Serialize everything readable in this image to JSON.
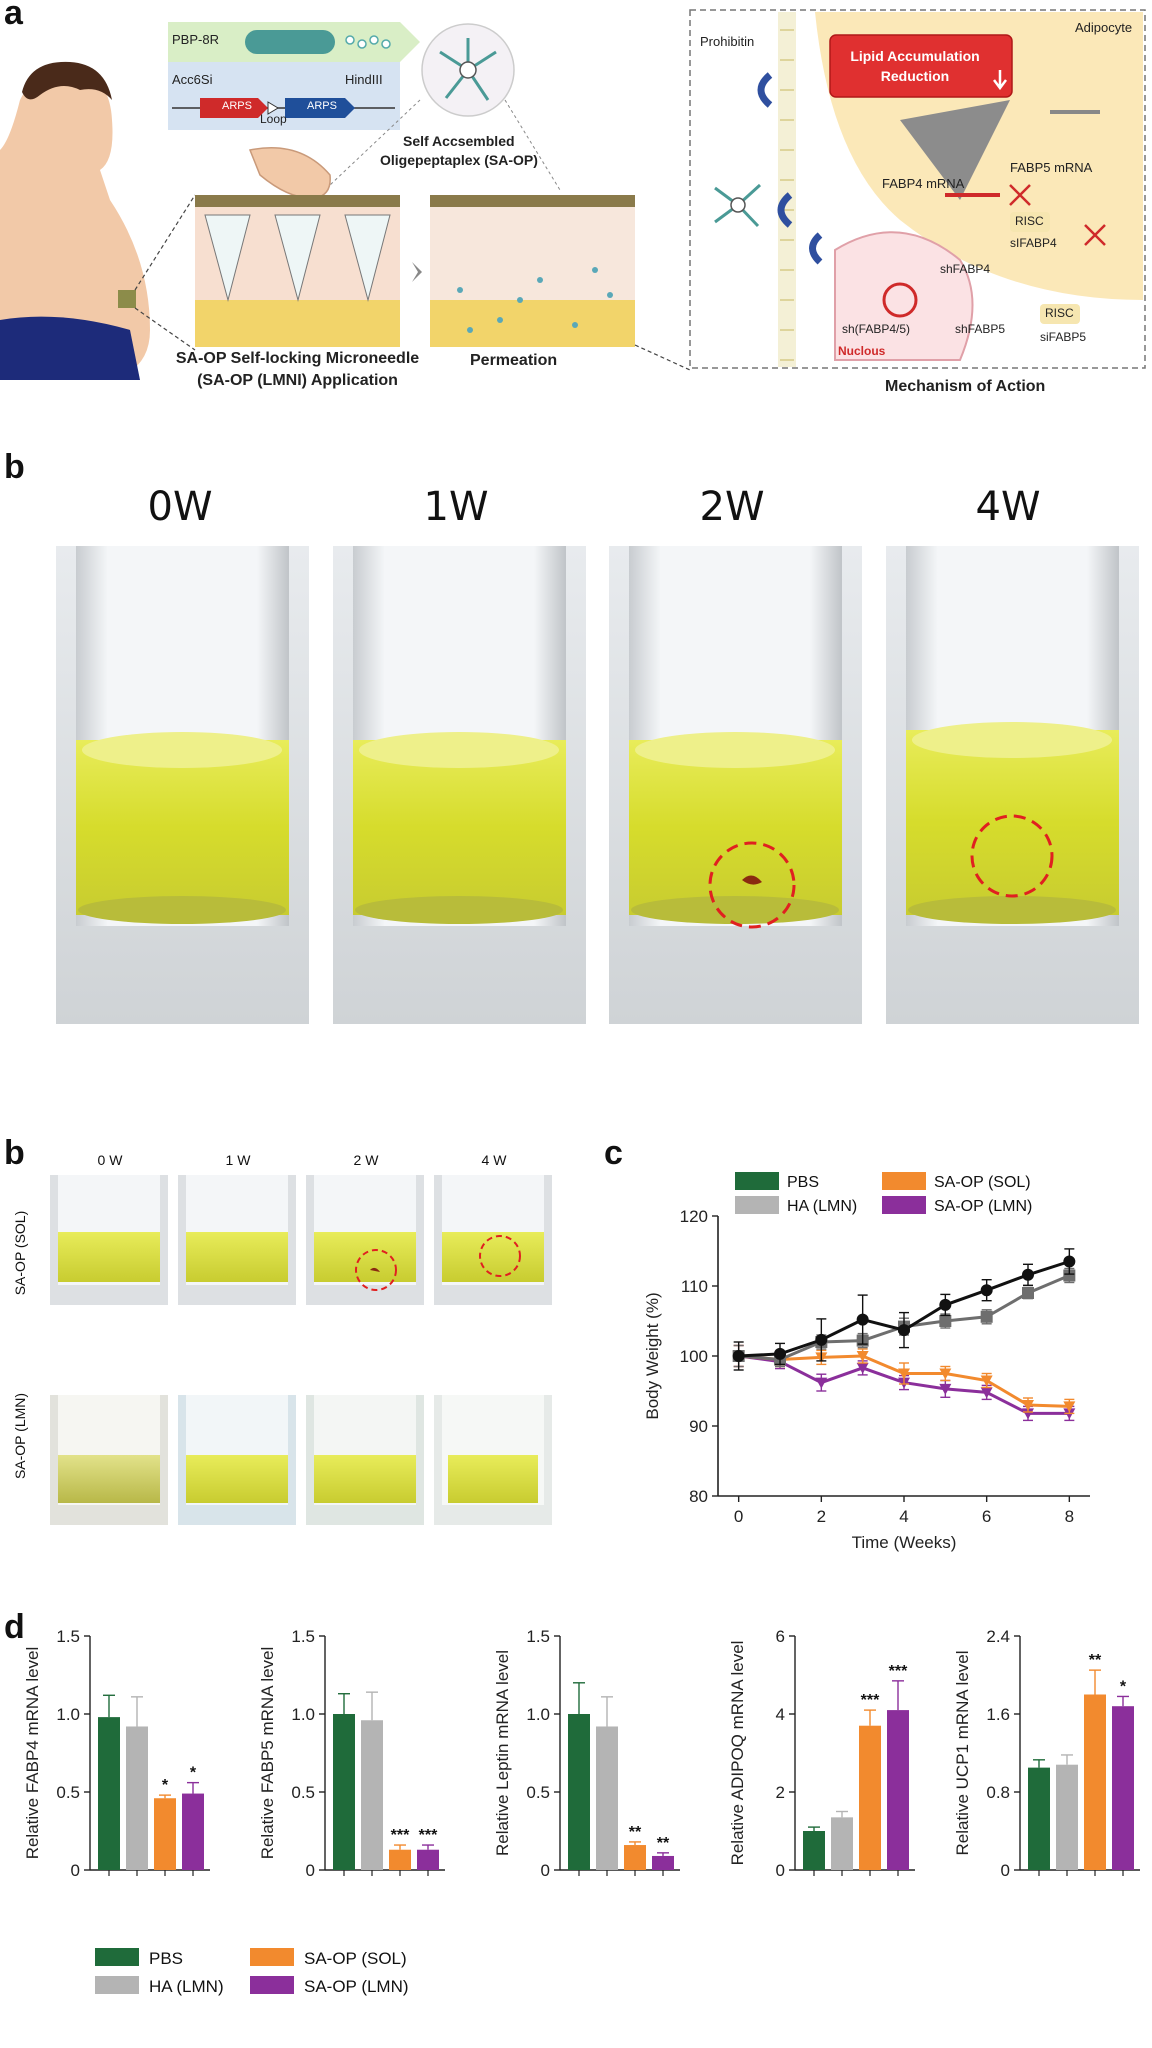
{
  "panels": {
    "a": "a",
    "b1": "b",
    "b2": "b",
    "c": "c",
    "d": "d"
  },
  "panel_a": {
    "construct_name": "PBP-8R",
    "site_left": "Acc6Si",
    "site_right": "HindIII",
    "gene1": "ARPS",
    "gene2": "ARPS",
    "loop": "Loop",
    "sa_op_title_line1": "Self Accsembled",
    "sa_op_title_line2": "Oligepeptaplex (SA-OP)",
    "caption_app_line1": "SA-OP Self-locking Microneedle",
    "caption_app_line2": "(SA-OP (LMNI) Application",
    "caption_perm": "Permeation",
    "prohibitin": "Prohibitin",
    "adipocyte": "Adipocyte",
    "lipid_line1": "Lipid Accumulation",
    "lipid_line2": "Reduction",
    "fabp5_mrna": "FABP5 mRNA",
    "fabp4_mrna": "FABP4 mRNA",
    "risc1": "RISC",
    "sifabp4": "sIFABP4",
    "shfabp4": "shFABP4",
    "sh_both": "sh(FABP4/5)",
    "shfabp5": "shFABP5",
    "risc2": "RISC",
    "sifabp5": "siFABP5",
    "nucleus": "Nuclous",
    "mechanism": "Mechanism of Action"
  },
  "panel_b_large": {
    "weeks": [
      "0W",
      "1W",
      "2W",
      "4W"
    ]
  },
  "panel_b_small": {
    "weeks": [
      "0 W",
      "1 W",
      "2 W",
      "4 W"
    ],
    "rows": [
      "SA-OP (SOL)",
      "SA-OP (LMN)"
    ]
  },
  "colors": {
    "pbs": "#1f6b3a",
    "ha": "#b4b4b4",
    "sol": "#f28a2e",
    "lmn": "#8b2f9b",
    "black": "#111111",
    "gray_line": "#6e6e6e",
    "red_dash": "#e02020",
    "liquid": "#d8e23a"
  },
  "chart_data": [
    {
      "type": "line",
      "xlabel": "Time (Weeks)",
      "ylabel": "Body Weight (%)",
      "xlim": [
        -0.5,
        8.5
      ],
      "ylim": [
        80,
        120
      ],
      "xticks": [
        "0",
        "2",
        "4",
        "6",
        "8"
      ],
      "yticks": [
        "80",
        "90",
        "100",
        "110",
        "120"
      ],
      "x": [
        0,
        1,
        2,
        3,
        4,
        5,
        6,
        7,
        8
      ],
      "legend": [
        "PBS",
        "SA-OP (SOL)",
        "HA (LMN)",
        "SA-OP (LMN)"
      ],
      "series": [
        {
          "name": "PBS",
          "color": "#111111",
          "values": [
            100,
            100.3,
            102.3,
            105.2,
            103.7,
            107.3,
            109.4,
            111.6,
            113.5
          ],
          "err": [
            2,
            1.5,
            3,
            3.5,
            2.5,
            1.5,
            1.5,
            1.5,
            1.8
          ]
        },
        {
          "name": "HA (LMN)",
          "color": "#6e6e6e",
          "values": [
            100,
            99.5,
            102,
            102.2,
            104.2,
            105,
            105.6,
            109,
            111.5
          ],
          "err": [
            1.5,
            1,
            1,
            1,
            1.2,
            1,
            1,
            0.8,
            1
          ]
        },
        {
          "name": "SA-OP (SOL)",
          "color": "#f28a2e",
          "values": [
            100,
            99.5,
            99.8,
            100,
            97.5,
            97.5,
            96.5,
            93,
            92.8
          ],
          "err": [
            1.5,
            1,
            1,
            1,
            1.5,
            1,
            1,
            1,
            1
          ]
        },
        {
          "name": "SA-OP (LMN)",
          "color": "#8b2f9b",
          "values": [
            100,
            99.2,
            96.2,
            98.3,
            96.2,
            95.3,
            94.8,
            91.8,
            91.8
          ],
          "err": [
            1.5,
            1,
            1.2,
            1,
            1,
            1.2,
            1,
            1,
            1
          ]
        }
      ]
    },
    {
      "type": "bar",
      "ylabel": "Relative FABP4 mRNA level",
      "ylim": [
        0,
        1.5
      ],
      "yticks": [
        "0",
        "0.5",
        "1.0",
        "1.5"
      ],
      "categories": [
        "PBS",
        "HA (LMN)",
        "SA-OP (SOL)",
        "SA-OP (LMN)"
      ],
      "values": [
        0.98,
        0.92,
        0.46,
        0.49
      ],
      "err": [
        0.14,
        0.19,
        0.02,
        0.07
      ],
      "sig": [
        "",
        "",
        "*",
        "*"
      ]
    },
    {
      "type": "bar",
      "ylabel": "Relative FABP5 mRNA level",
      "ylim": [
        0,
        1.5
      ],
      "yticks": [
        "0",
        "0.5",
        "1.0",
        "1.5"
      ],
      "categories": [
        "PBS",
        "HA (LMN)",
        "SA-OP (SOL)",
        "SA-OP (LMN)"
      ],
      "values": [
        1.0,
        0.96,
        0.13,
        0.13
      ],
      "err": [
        0.13,
        0.18,
        0.03,
        0.03
      ],
      "sig": [
        "",
        "",
        "***",
        "***"
      ]
    },
    {
      "type": "bar",
      "ylabel": "Relative Leptin mRNA level",
      "ylim": [
        0,
        1.5
      ],
      "yticks": [
        "0",
        "0.5",
        "1.0",
        "1.5"
      ],
      "categories": [
        "PBS",
        "HA (LMN)",
        "SA-OP (SOL)",
        "SA-OP (LMN)"
      ],
      "values": [
        1.0,
        0.92,
        0.16,
        0.09
      ],
      "err": [
        0.2,
        0.19,
        0.02,
        0.02
      ],
      "sig": [
        "",
        "",
        "**",
        "**"
      ]
    },
    {
      "type": "bar",
      "ylabel": "Relative ADIPOQ mRNA level",
      "ylim": [
        0,
        6
      ],
      "yticks": [
        "0",
        "2",
        "4",
        "6"
      ],
      "categories": [
        "PBS",
        "HA (LMN)",
        "SA-OP (SOL)",
        "SA-OP (LMN)"
      ],
      "values": [
        1.0,
        1.35,
        3.7,
        4.1
      ],
      "err": [
        0.1,
        0.15,
        0.4,
        0.75
      ],
      "sig": [
        "",
        "",
        "***",
        "***"
      ]
    },
    {
      "type": "bar",
      "ylabel": "Relative UCP1  mRNA level",
      "ylim": [
        0,
        2.4
      ],
      "yticks": [
        "0",
        "0.8",
        "1.6",
        "2.4"
      ],
      "categories": [
        "PBS",
        "HA (LMN)",
        "SA-OP (SOL)",
        "SA-OP (LMN)"
      ],
      "values": [
        1.05,
        1.08,
        1.8,
        1.68
      ],
      "err": [
        0.08,
        0.1,
        0.25,
        0.1
      ],
      "sig": [
        "",
        "",
        "**",
        "*"
      ]
    }
  ],
  "bar_legend": [
    "PBS",
    "HA (LMN)",
    "SA-OP (SOL)",
    "SA-OP (LMN)"
  ]
}
